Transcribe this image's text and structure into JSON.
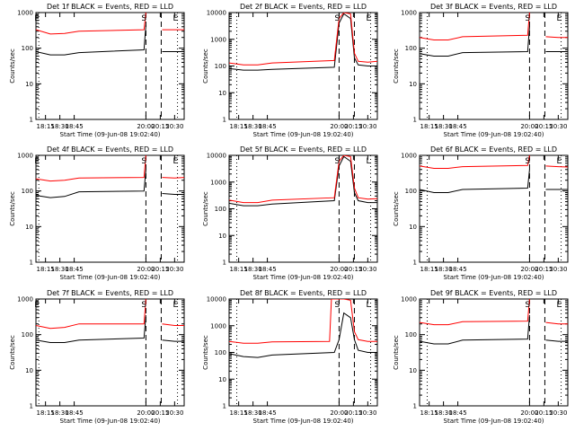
{
  "chart_data": [
    {
      "type": "line",
      "title": "Det 1f BLACK = Events, RED = LLD",
      "xlabel": "Start Time (09-Jun-08 19:02:40)",
      "ylabel": "Counts/sec",
      "yscale": "log",
      "ylim": [
        1,
        1000
      ],
      "xlim": [
        "18:05",
        "20:40"
      ],
      "xticks": [
        "18:15",
        "18:30",
        "18:45",
        "20:00",
        "20:15",
        "20:30"
      ],
      "yticks": [
        "1",
        "10",
        "100",
        "1000"
      ],
      "grid": false,
      "markers": [
        {
          "label": "E",
          "x": "18:08"
        },
        {
          "label": "S",
          "x": "20:00"
        },
        {
          "label": "E",
          "x": "20:33"
        }
      ],
      "vlines": {
        "dotted": [
          "18:08",
          "20:33"
        ],
        "dashed": [
          "20:00",
          "20:16"
        ]
      },
      "series": [
        {
          "name": "Events",
          "color": "#000000",
          "x": [
            "18:05",
            "18:20",
            "18:35",
            "18:50",
            "19:58",
            "20:00",
            "20:16",
            "20:17",
            "20:30",
            "20:40"
          ],
          "y": [
            80,
            65,
            65,
            75,
            90,
            450,
            null,
            80,
            80,
            80
          ]
        },
        {
          "name": "LLD",
          "color": "#ff0000",
          "x": [
            "18:05",
            "18:20",
            "18:35",
            "18:50",
            "19:58",
            "20:00",
            "20:16",
            "20:17",
            "20:30",
            "20:40"
          ],
          "y": [
            330,
            250,
            260,
            300,
            330,
            1000,
            null,
            330,
            330,
            330
          ]
        }
      ]
    },
    {
      "type": "line",
      "title": "Det 2f BLACK = Events, RED = LLD",
      "xlabel": "Start Time (09-Jun-08 19:02:40)",
      "ylabel": "Counts/sec",
      "yscale": "log",
      "ylim": [
        1,
        10000
      ],
      "xlim": [
        "18:05",
        "20:40"
      ],
      "xticks": [
        "18:15",
        "18:30",
        "18:45",
        "20:00",
        "20:15",
        "20:30"
      ],
      "yticks": [
        "1",
        "10",
        "100",
        "1000",
        "10000"
      ],
      "grid": false,
      "markers": [
        {
          "label": "S",
          "x": "20:00"
        },
        {
          "label": "E",
          "x": "20:33"
        }
      ],
      "vlines": {
        "dotted": [
          "18:13",
          "20:33"
        ],
        "dashed": [
          "20:00",
          "20:16"
        ]
      },
      "series": [
        {
          "name": "Events",
          "color": "#000000",
          "x": [
            "18:05",
            "18:20",
            "18:35",
            "18:50",
            "19:55",
            "20:00",
            "20:05",
            "20:12",
            "20:16",
            "20:20",
            "20:30",
            "20:40"
          ],
          "y": [
            80,
            70,
            70,
            75,
            90,
            4000,
            9000,
            6000,
            200,
            110,
            100,
            100
          ]
        },
        {
          "name": "LLD",
          "color": "#ff0000",
          "x": [
            "18:05",
            "18:20",
            "18:35",
            "18:50",
            "19:55",
            "20:00",
            "20:05",
            "20:12",
            "20:16",
            "20:20",
            "20:30",
            "20:40"
          ],
          "y": [
            130,
            110,
            110,
            130,
            160,
            6000,
            10000,
            9000,
            300,
            150,
            140,
            150
          ]
        }
      ]
    },
    {
      "type": "line",
      "title": "Det 3f BLACK = Events, RED = LLD",
      "xlabel": "Start Time (09-Jun-08 19:02:40)",
      "ylabel": "Counts/sec",
      "yscale": "log",
      "ylim": [
        1,
        1000
      ],
      "xlim": [
        "18:05",
        "20:40"
      ],
      "xticks": [
        "18:15",
        "18:30",
        "18:45",
        "20:00",
        "20:15",
        "20:30"
      ],
      "yticks": [
        "1",
        "10",
        "100",
        "1000"
      ],
      "grid": false,
      "markers": [
        {
          "label": "S",
          "x": "20:00"
        },
        {
          "label": "E",
          "x": "20:33"
        }
      ],
      "vlines": {
        "dotted": [
          "18:13",
          "20:33"
        ],
        "dashed": [
          "20:00",
          "20:16"
        ]
      },
      "series": [
        {
          "name": "Events",
          "color": "#000000",
          "x": [
            "18:05",
            "18:20",
            "18:35",
            "18:50",
            "19:58",
            "20:00",
            "20:16",
            "20:17",
            "20:30",
            "20:40"
          ],
          "y": [
            70,
            60,
            60,
            75,
            80,
            400,
            null,
            80,
            80,
            80
          ]
        },
        {
          "name": "LLD",
          "color": "#ff0000",
          "x": [
            "18:05",
            "18:20",
            "18:35",
            "18:50",
            "19:58",
            "20:00",
            "20:16",
            "20:17",
            "20:30",
            "20:40"
          ],
          "y": [
            200,
            170,
            170,
            210,
            230,
            1000,
            null,
            210,
            200,
            200
          ]
        }
      ]
    },
    {
      "type": "line",
      "title": "Det 4f BLACK = Events, RED = LLD",
      "xlabel": "Start Time (09-Jun-08 19:02:40)",
      "ylabel": "Counts/sec",
      "yscale": "log",
      "ylim": [
        1,
        1000
      ],
      "xlim": [
        "18:05",
        "20:40"
      ],
      "xticks": [
        "18:15",
        "18:30",
        "18:45",
        "20:00",
        "20:15",
        "20:30"
      ],
      "yticks": [
        "1",
        "10",
        "100",
        "1000"
      ],
      "grid": false,
      "markers": [
        {
          "label": "E",
          "x": "18:08"
        },
        {
          "label": "S",
          "x": "20:00"
        },
        {
          "label": "E",
          "x": "20:33"
        }
      ],
      "vlines": {
        "dotted": [
          "18:08",
          "20:33"
        ],
        "dashed": [
          "20:00",
          "20:16"
        ]
      },
      "series": [
        {
          "name": "Events",
          "color": "#000000",
          "x": [
            "18:05",
            "18:20",
            "18:35",
            "18:50",
            "19:58",
            "20:00",
            "20:16",
            "20:17",
            "20:30",
            "20:40"
          ],
          "y": [
            75,
            65,
            70,
            95,
            100,
            400,
            null,
            85,
            80,
            80
          ]
        },
        {
          "name": "LLD",
          "color": "#ff0000",
          "x": [
            "18:05",
            "18:20",
            "18:35",
            "18:50",
            "19:58",
            "20:00",
            "20:16",
            "20:17",
            "20:30",
            "20:40"
          ],
          "y": [
            220,
            190,
            200,
            230,
            240,
            1000,
            null,
            240,
            230,
            240
          ]
        }
      ]
    },
    {
      "type": "line",
      "title": "Det 5f BLACK = Events, RED = LLD",
      "xlabel": "Start Time (09-Jun-08 19:02:40)",
      "ylabel": "Counts/sec",
      "yscale": "log",
      "ylim": [
        1,
        10000
      ],
      "xlim": [
        "18:05",
        "20:40"
      ],
      "xticks": [
        "18:15",
        "18:30",
        "18:45",
        "20:00",
        "20:15",
        "20:30"
      ],
      "yticks": [
        "1",
        "10",
        "100",
        "1000",
        "10000"
      ],
      "grid": false,
      "markers": [
        {
          "label": "S",
          "x": "20:00"
        },
        {
          "label": "L",
          "x": "20:33"
        }
      ],
      "vlines": {
        "dotted": [
          "18:13",
          "20:33"
        ],
        "dashed": [
          "20:00",
          "20:16"
        ]
      },
      "series": [
        {
          "name": "Events",
          "color": "#000000",
          "x": [
            "18:05",
            "18:20",
            "18:35",
            "18:50",
            "19:55",
            "20:00",
            "20:05",
            "20:12",
            "20:16",
            "20:20",
            "20:30",
            "20:40"
          ],
          "y": [
            160,
            130,
            130,
            150,
            200,
            4000,
            9000,
            6000,
            400,
            200,
            170,
            170
          ]
        },
        {
          "name": "LLD",
          "color": "#ff0000",
          "x": [
            "18:05",
            "18:20",
            "18:35",
            "18:50",
            "19:55",
            "20:00",
            "20:05",
            "20:12",
            "20:16",
            "20:20",
            "20:30",
            "20:40"
          ],
          "y": [
            210,
            170,
            170,
            210,
            260,
            6000,
            10000,
            9000,
            600,
            260,
            230,
            240
          ]
        }
      ]
    },
    {
      "type": "line",
      "title": "Det 6f BLACK = Events, RED = LLD",
      "xlabel": "Start Time (09-Jun-08 19:02:40)",
      "ylabel": "Counts/sec",
      "yscale": "log",
      "ylim": [
        1,
        1000
      ],
      "xlim": [
        "18:05",
        "20:40"
      ],
      "xticks": [
        "18:15",
        "18:30",
        "18:45",
        "20:00",
        "20:15",
        "20:30"
      ],
      "yticks": [
        "1",
        "10",
        "100",
        "1000"
      ],
      "grid": false,
      "markers": [
        {
          "label": "S",
          "x": "20:00"
        },
        {
          "label": "E",
          "x": "20:33"
        }
      ],
      "vlines": {
        "dotted": [
          "18:13",
          "20:33"
        ],
        "dashed": [
          "20:00",
          "20:16"
        ]
      },
      "series": [
        {
          "name": "Events",
          "color": "#000000",
          "x": [
            "18:05",
            "18:20",
            "18:35",
            "18:50",
            "19:58",
            "20:00",
            "20:16",
            "20:17",
            "20:30",
            "20:40"
          ],
          "y": [
            110,
            90,
            90,
            110,
            120,
            400,
            null,
            110,
            110,
            110
          ]
        },
        {
          "name": "LLD",
          "color": "#ff0000",
          "x": [
            "18:05",
            "18:20",
            "18:35",
            "18:50",
            "19:58",
            "20:00",
            "20:16",
            "20:17",
            "20:30",
            "20:40"
          ],
          "y": [
            500,
            430,
            430,
            480,
            520,
            1000,
            null,
            500,
            480,
            470
          ]
        }
      ]
    },
    {
      "type": "line",
      "title": "Det 7f BLACK = Events, RED = LLD",
      "xlabel": "Start Time (09-Jun-08 19:02:40)",
      "ylabel": "Counts/sec",
      "yscale": "log",
      "ylim": [
        1,
        1000
      ],
      "xlim": [
        "18:05",
        "20:40"
      ],
      "xticks": [
        "18:15",
        "18:30",
        "18:45",
        "20:00",
        "20:15",
        "20:30"
      ],
      "yticks": [
        "1",
        "10",
        "100",
        "1000"
      ],
      "grid": false,
      "markers": [
        {
          "label": "E",
          "x": "18:08"
        },
        {
          "label": "S",
          "x": "20:00"
        },
        {
          "label": "E",
          "x": "20:33"
        }
      ],
      "vlines": {
        "dotted": [
          "18:08",
          "20:33"
        ],
        "dashed": [
          "20:00",
          "20:16"
        ]
      },
      "series": [
        {
          "name": "Events",
          "color": "#000000",
          "x": [
            "18:05",
            "18:20",
            "18:35",
            "18:50",
            "19:58",
            "20:00",
            "20:16",
            "20:17",
            "20:30",
            "20:40"
          ],
          "y": [
            70,
            60,
            60,
            70,
            80,
            350,
            null,
            70,
            65,
            65
          ]
        },
        {
          "name": "LLD",
          "color": "#ff0000",
          "x": [
            "18:05",
            "18:20",
            "18:35",
            "18:50",
            "19:58",
            "20:00",
            "20:16",
            "20:17",
            "20:30",
            "20:40"
          ],
          "y": [
            180,
            150,
            160,
            200,
            200,
            1000,
            null,
            200,
            180,
            180
          ]
        }
      ]
    },
    {
      "type": "line",
      "title": "Det 8f BLACK = Events, RED = LLD",
      "xlabel": "Start Time (09-Jun-08 19:02:40)",
      "ylabel": "Counts/sec",
      "yscale": "log",
      "ylim": [
        1,
        10000
      ],
      "xlim": [
        "18:05",
        "20:40"
      ],
      "xticks": [
        "18:15",
        "18:30",
        "18:45",
        "20:00",
        "20:15",
        "20:30"
      ],
      "yticks": [
        "1",
        "10",
        "100",
        "1000",
        "10000"
      ],
      "grid": false,
      "markers": [
        {
          "label": "S",
          "x": "20:00"
        },
        {
          "label": "L",
          "x": "20:33"
        }
      ],
      "vlines": {
        "dotted": [
          "18:13",
          "20:33"
        ],
        "dashed": [
          "20:00",
          "20:16"
        ]
      },
      "series": [
        {
          "name": "Events",
          "color": "#000000",
          "x": [
            "18:05",
            "18:20",
            "18:35",
            "18:50",
            "19:55",
            "20:00",
            "20:05",
            "20:12",
            "20:16",
            "20:20",
            "20:30",
            "20:40"
          ],
          "y": [
            90,
            70,
            65,
            80,
            100,
            300,
            3000,
            2000,
            300,
            120,
            100,
            100
          ]
        },
        {
          "name": "LLD",
          "color": "#ff0000",
          "x": [
            "18:05",
            "18:20",
            "18:35",
            "18:50",
            "19:50",
            "19:52",
            "20:00",
            "20:05",
            "20:12",
            "20:16",
            "20:20",
            "20:30",
            "20:40"
          ],
          "y": [
            260,
            220,
            220,
            250,
            260,
            10000,
            10000,
            10000,
            9000,
            600,
            300,
            260,
            260
          ]
        }
      ]
    },
    {
      "type": "line",
      "title": "Det 9f BLACK = Events, RED = LLD",
      "xlabel": "Start Time (09-Jun-08 19:02:40)",
      "ylabel": "Counts/sec",
      "yscale": "log",
      "ylim": [
        1,
        1000
      ],
      "xlim": [
        "18:05",
        "20:40"
      ],
      "xticks": [
        "18:15",
        "18:30",
        "18:45",
        "20:00",
        "20:15",
        "20:30"
      ],
      "yticks": [
        "1",
        "10",
        "100",
        "1000"
      ],
      "grid": false,
      "markers": [
        {
          "label": "S",
          "x": "20:00"
        },
        {
          "label": "E",
          "x": "20:33"
        }
      ],
      "vlines": {
        "dotted": [
          "18:13",
          "20:33"
        ],
        "dashed": [
          "20:00",
          "20:16"
        ]
      },
      "series": [
        {
          "name": "Events",
          "color": "#000000",
          "x": [
            "18:05",
            "18:20",
            "18:35",
            "18:50",
            "19:58",
            "20:00",
            "20:16",
            "20:17",
            "20:30",
            "20:40"
          ],
          "y": [
            65,
            55,
            55,
            70,
            75,
            350,
            null,
            70,
            65,
            65
          ]
        },
        {
          "name": "LLD",
          "color": "#ff0000",
          "x": [
            "18:05",
            "18:20",
            "18:35",
            "18:50",
            "19:58",
            "20:00",
            "20:16",
            "20:17",
            "20:30",
            "20:40"
          ],
          "y": [
            220,
            190,
            190,
            230,
            240,
            1000,
            null,
            220,
            200,
            200
          ]
        }
      ]
    }
  ]
}
